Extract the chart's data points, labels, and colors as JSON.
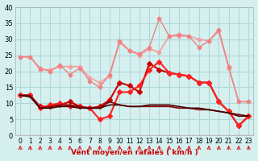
{
  "xlabel": "Vent moyen/en rafales ( km/h )",
  "x": [
    0,
    1,
    2,
    3,
    4,
    5,
    6,
    7,
    8,
    9,
    10,
    11,
    12,
    13,
    14,
    15,
    16,
    17,
    18,
    19,
    20,
    21,
    22,
    23
  ],
  "ylim": [
    0,
    40
  ],
  "yticks": [
    0,
    5,
    10,
    15,
    20,
    25,
    30,
    35,
    40
  ],
  "background_color": "#d6f0f0",
  "grid_color": "#b0d8d8",
  "series": [
    {
      "y": [
        24.5,
        24.5,
        20.5,
        20.5,
        21.5,
        21.5,
        21.5,
        18.0,
        16.5,
        18.5,
        29.0,
        26.5,
        25.0,
        27.0,
        26.0,
        31.0,
        31.0,
        31.0,
        30.0,
        29.5,
        32.5,
        21.0,
        10.5,
        10.5
      ],
      "color": "#f0a0a0",
      "lw": 1.2,
      "marker": "D",
      "ms": 2.5
    },
    {
      "y": [
        24.5,
        24.5,
        21.0,
        20.0,
        22.0,
        19.0,
        21.0,
        17.0,
        15.0,
        19.0,
        29.5,
        26.5,
        25.5,
        27.5,
        36.5,
        31.0,
        31.5,
        31.0,
        27.5,
        29.5,
        33.0,
        21.5,
        10.5,
        10.5
      ],
      "color": "#f08080",
      "lw": 1.0,
      "marker": "D",
      "ms": 2.5
    },
    {
      "y": [
        12.5,
        12.5,
        9.0,
        9.0,
        9.5,
        10.5,
        9.0,
        8.5,
        9.0,
        11.0,
        16.5,
        15.5,
        13.5,
        22.5,
        20.5,
        19.5,
        19.0,
        18.5,
        16.5,
        16.5,
        10.5,
        7.5,
        3.0,
        6.0
      ],
      "color": "#cc0000",
      "lw": 1.5,
      "marker": "D",
      "ms": 3.0
    },
    {
      "y": [
        12.5,
        12.5,
        8.5,
        9.5,
        10.0,
        9.0,
        9.0,
        8.5,
        5.0,
        6.0,
        13.5,
        13.5,
        15.5,
        20.5,
        23.0,
        19.5,
        19.0,
        18.5,
        16.5,
        16.5,
        10.5,
        7.5,
        3.0,
        6.0
      ],
      "color": "#ff2222",
      "lw": 1.5,
      "marker": "D",
      "ms": 3.0
    },
    {
      "y": [
        12.5,
        12.5,
        8.5,
        9.0,
        9.5,
        9.5,
        9.0,
        8.5,
        8.5,
        10.5,
        9.5,
        9.0,
        9.0,
        9.0,
        9.0,
        9.0,
        8.5,
        8.5,
        8.0,
        8.0,
        7.5,
        7.0,
        6.5,
        6.0
      ],
      "color": "#880000",
      "lw": 1.2,
      "marker": null,
      "ms": 0
    },
    {
      "y": [
        12.5,
        12.0,
        8.5,
        8.5,
        9.0,
        9.0,
        8.5,
        8.5,
        8.5,
        9.5,
        9.5,
        9.0,
        9.0,
        9.5,
        9.5,
        9.5,
        9.0,
        8.5,
        8.5,
        8.0,
        7.5,
        7.0,
        6.0,
        6.0
      ],
      "color": "#440000",
      "lw": 1.2,
      "marker": null,
      "ms": 0
    }
  ],
  "arrow_color": "#cc2222"
}
